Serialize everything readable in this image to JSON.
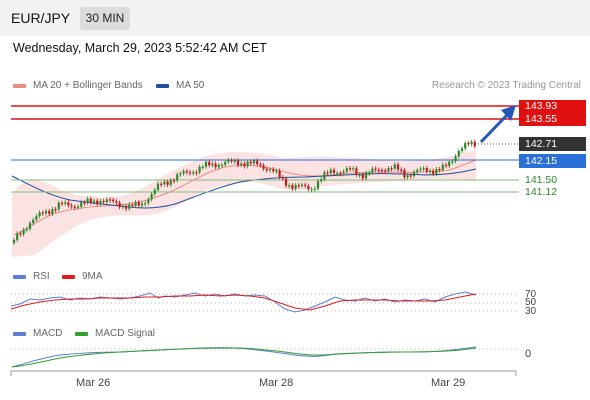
{
  "header": {
    "pair": "EUR/JPY",
    "timeframe": "30 MIN"
  },
  "datetime": "Wednesday, March 29, 2023 5:52:42 AM CET",
  "legend_main": [
    {
      "label": "MA 20 + Bollinger Bands",
      "color": "#f28b82"
    },
    {
      "label": "MA 50",
      "color": "#1f4e9e"
    }
  ],
  "credit": "Research © 2023 Trading Central",
  "levels": {
    "r2": "143.93",
    "r1": "143.55",
    "last": "142.71",
    "pivot": "142.15",
    "s1": "141.50",
    "s2": "141.12"
  },
  "legend_rsi": [
    {
      "label": "RSI",
      "color": "#5b7fd6"
    },
    {
      "label": "9MA",
      "color": "#e31b1b"
    }
  ],
  "rsi_levels": [
    "70",
    "50",
    "30"
  ],
  "legend_macd": [
    {
      "label": "MACD",
      "color": "#5b7fd6"
    },
    {
      "label": "MACD Signal",
      "color": "#2ea02e"
    }
  ],
  "macd_zero": "0",
  "date_labels": [
    "Mar 26",
    "Mar 28",
    "Mar 29"
  ],
  "colors": {
    "resistance": "#e01010",
    "pivot": "#2b6fd8",
    "support": "#2a8a2a",
    "last": "#333333",
    "bull": "#2a8a2a",
    "bear": "#c01818",
    "arrow": "#2256b8"
  }
}
